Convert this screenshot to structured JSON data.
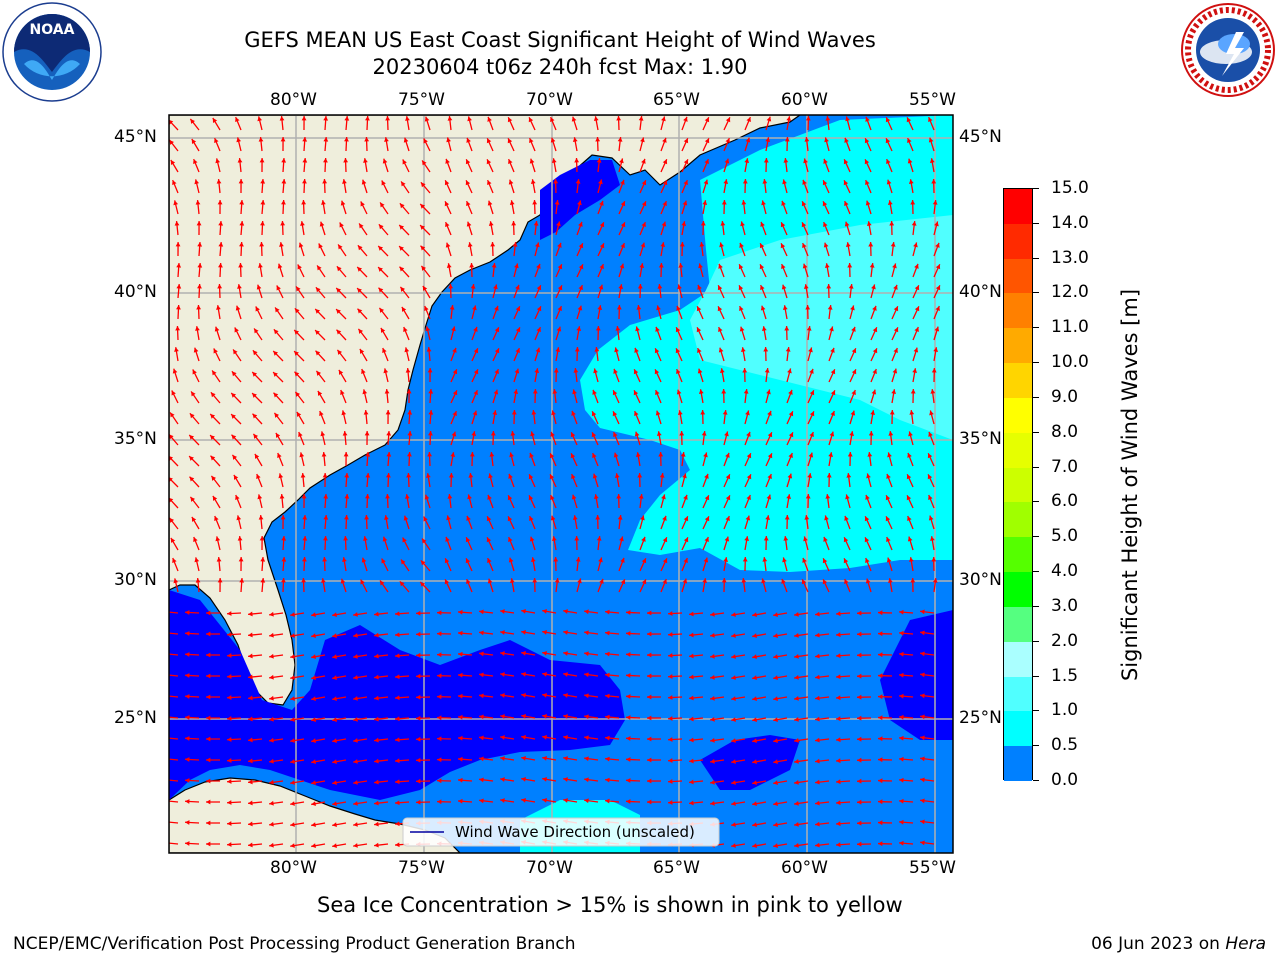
{
  "title": {
    "line1": "GEFS MEAN US East Coast Significant Height of Wind Waves",
    "line2": "20230604 t06z 240h fcst   Max: 1.90"
  },
  "logos": {
    "left": {
      "icon": "noaa-logo",
      "text": "NOAA"
    },
    "right": {
      "icon": "nws-logo",
      "ring_text": "NATIONAL WEATHER SERVICE"
    }
  },
  "map": {
    "lon_labels": [
      "80°W",
      "75°W",
      "70°W",
      "65°W",
      "60°W",
      "55°W"
    ],
    "lat_labels": [
      "45°N",
      "40°N",
      "35°N",
      "30°N",
      "25°N"
    ],
    "legend_label": "Wind Wave Direction (unscaled)",
    "colors": {
      "land": "#efeedc",
      "ocean_0": "#0000ff",
      "ocean_05": "#0080ff",
      "ocean_1": "#00ffff",
      "ocean_15": "#50ffff",
      "arrow": "#ff0000",
      "grid": "#b0b0b0",
      "coast": "#000000"
    }
  },
  "colorbar": {
    "label": "Significant Height of Wind Waves [m]",
    "ticks": [
      "15.0",
      "14.0",
      "13.0",
      "12.0",
      "11.0",
      "10.0",
      "9.0",
      "8.0",
      "7.0",
      "6.0",
      "5.0",
      "4.0",
      "3.0",
      "2.0",
      "1.5",
      "1.0",
      "0.5",
      "0.0"
    ],
    "colors": [
      "#ff0000",
      "#ff2a00",
      "#ff5500",
      "#ff8000",
      "#ffaa00",
      "#ffd500",
      "#ffff00",
      "#e6ff00",
      "#ccff00",
      "#a0ff00",
      "#55ff00",
      "#00ff00",
      "#55ff80",
      "#aaffff",
      "#50ffff",
      "#00ffff",
      "#0080ff",
      "#0000ff"
    ]
  },
  "notes": {
    "sea_ice": "Sea Ice Concentration > 15% is shown in pink to yellow"
  },
  "footer": {
    "left": "NCEP/EMC/Verification Post Processing Product Generation Branch",
    "right_date": "06 Jun 2023 on ",
    "right_host": "Hera"
  }
}
